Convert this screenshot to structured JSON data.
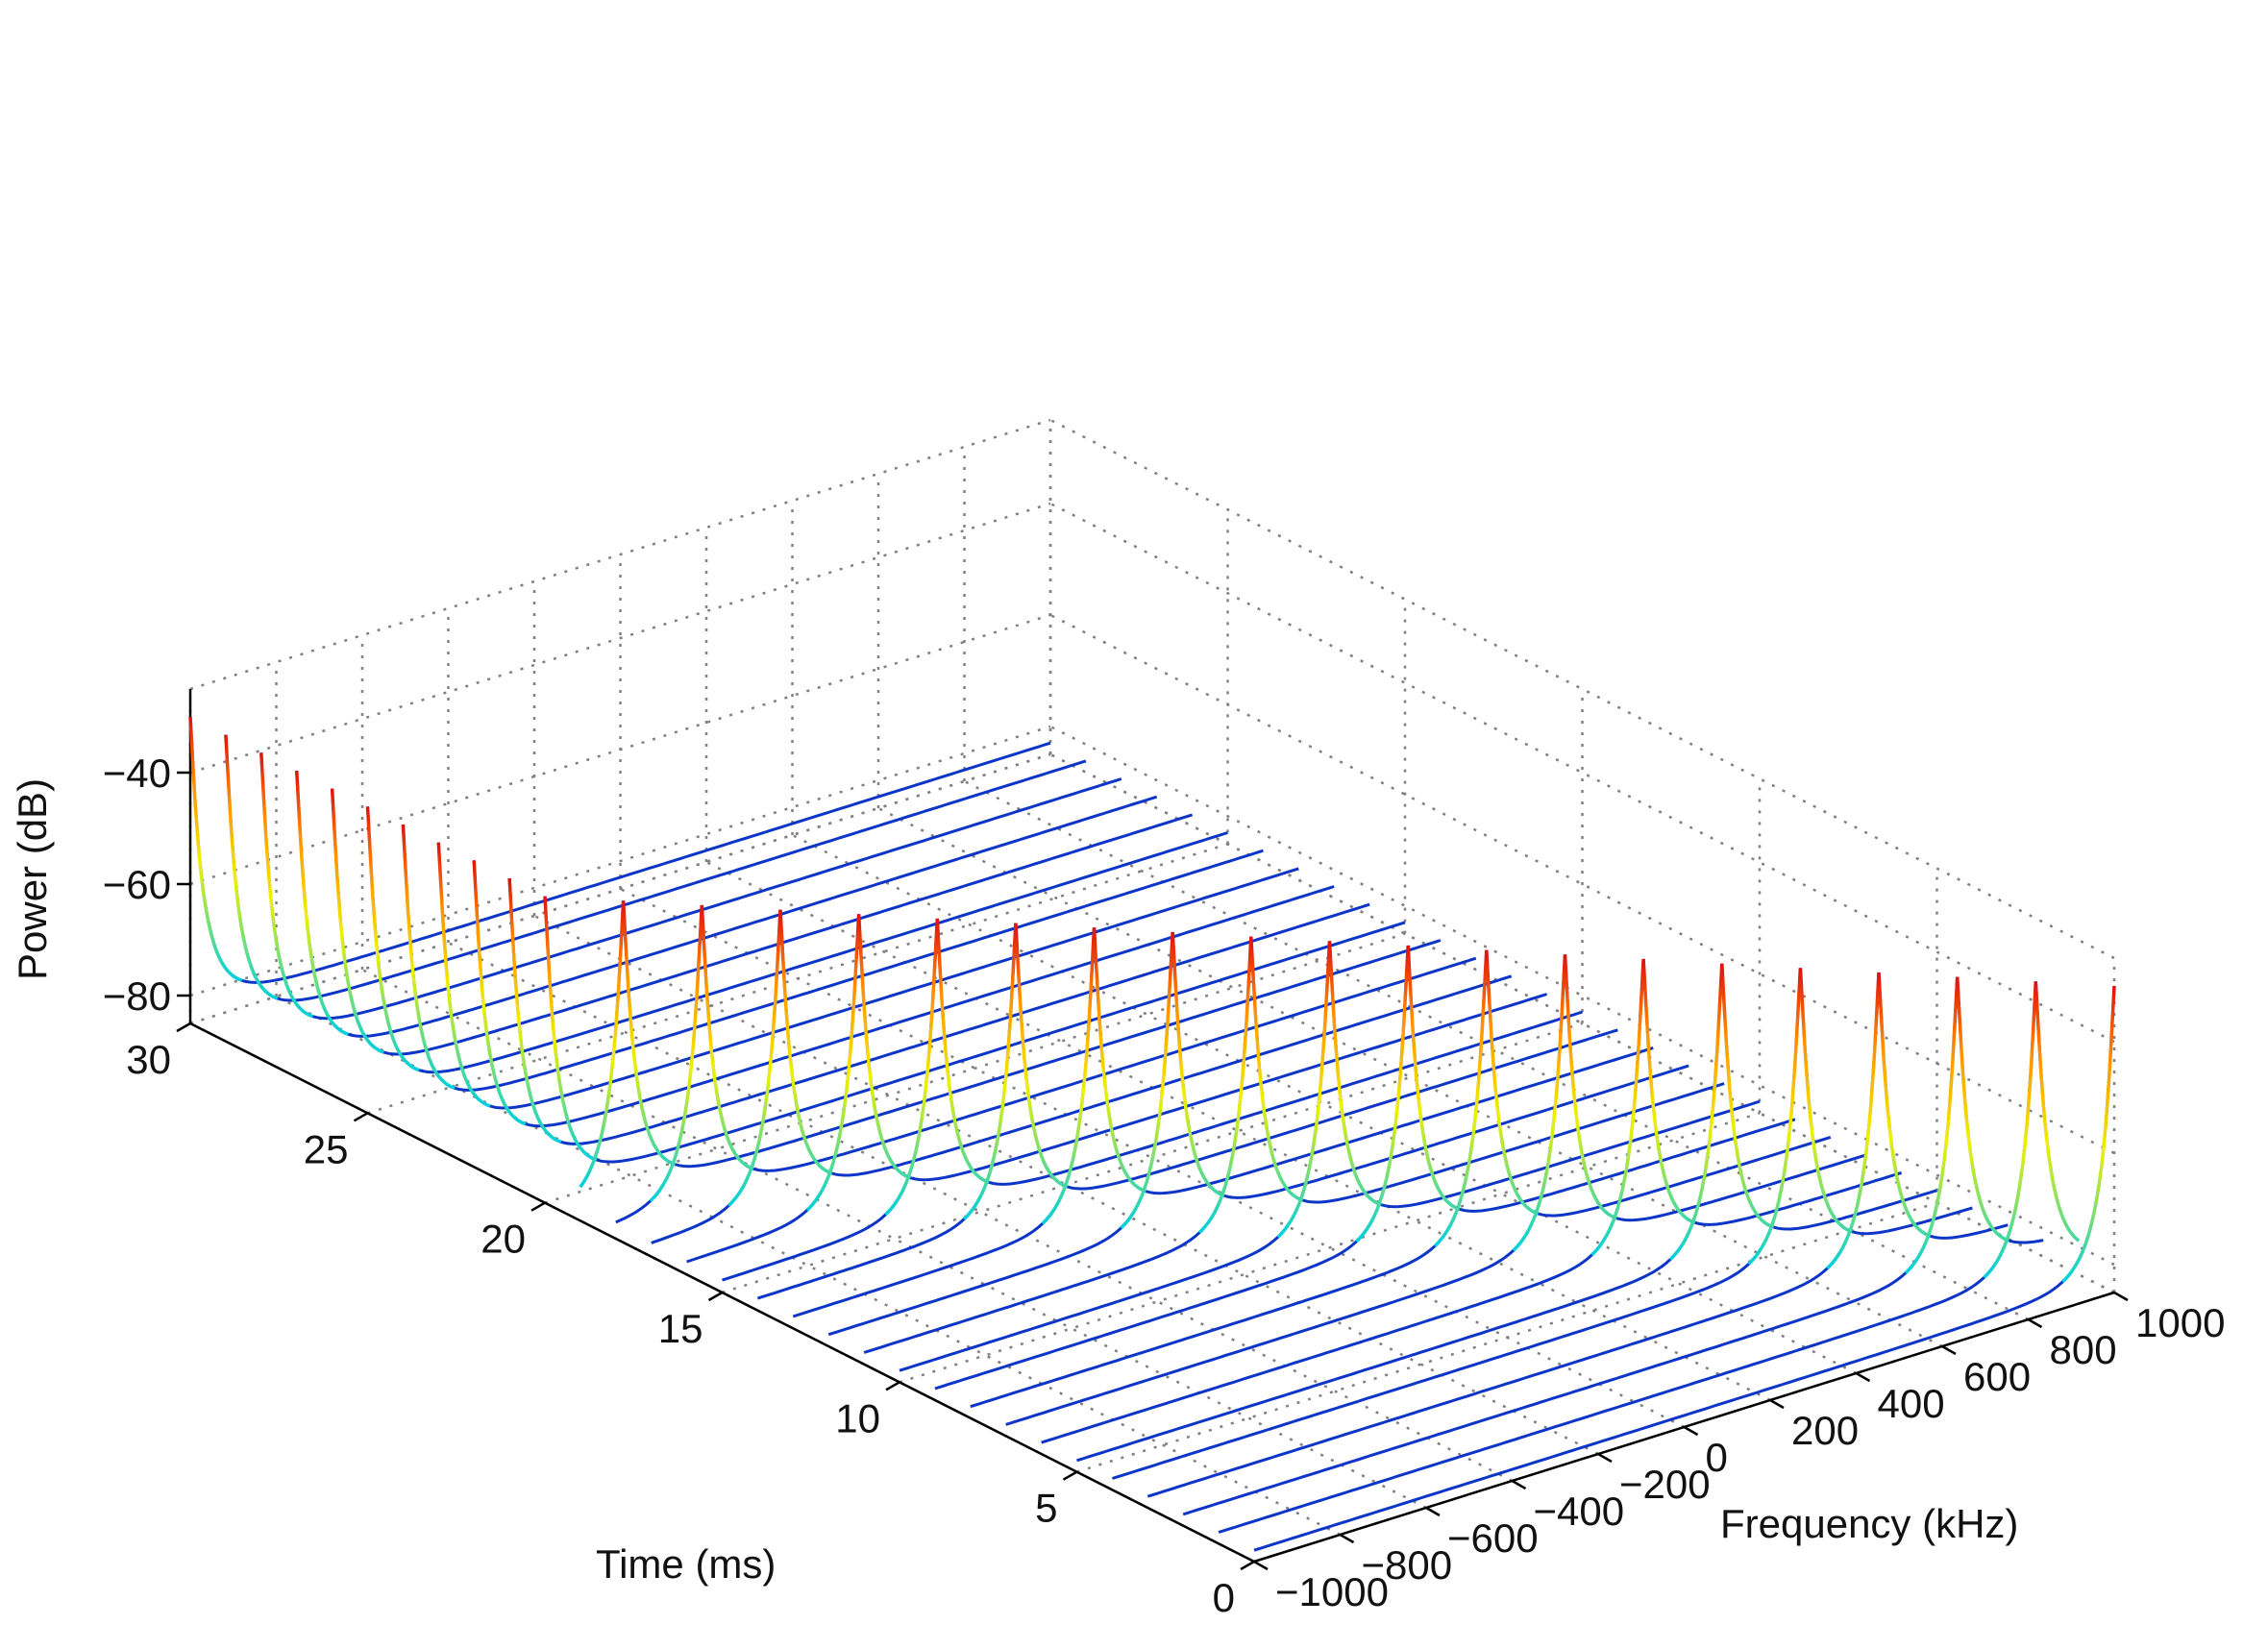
{
  "chart_data": {
    "type": "waterfall",
    "title": "",
    "xlabel": "Frequency (kHz)",
    "ylabel": "Time (ms)",
    "zlabel": "Power (dB)",
    "x_ticks": [
      -1000,
      -800,
      -600,
      -400,
      -200,
      0,
      200,
      400,
      600,
      800,
      1000
    ],
    "y_ticks": [
      0,
      5,
      10,
      15,
      20,
      25,
      30
    ],
    "z_ticks": [
      -40,
      -60,
      -80
    ],
    "xlim": [
      -1000,
      1000
    ],
    "ylim": [
      0,
      30
    ],
    "zlim": [
      -85,
      -25
    ],
    "grid": true,
    "colormap": "jet",
    "time_samples_ms": [
      0,
      1,
      2,
      3,
      4,
      5,
      6,
      7,
      8,
      9,
      10,
      11,
      12,
      13,
      14,
      15,
      16,
      17,
      18,
      19,
      20,
      21,
      22,
      23,
      24,
      25,
      26,
      27,
      28,
      29,
      30
    ],
    "peak_frequency_khz": [
      1000,
      900,
      800,
      700,
      600,
      500,
      400,
      300,
      200,
      100,
      0,
      -100,
      -200,
      -300,
      -400,
      -500,
      -600,
      -700,
      -800,
      -900,
      -1000,
      -1000,
      -1000,
      -1000,
      -1000,
      -1000,
      -1000,
      -1000,
      -1000,
      -1000,
      -1000
    ],
    "peak_power_db": -30,
    "floor_power_db": -83,
    "colors": {
      "low": "#1010c0",
      "mid": "#00c8e8",
      "high": "#e01010",
      "grid": "#808080"
    }
  }
}
